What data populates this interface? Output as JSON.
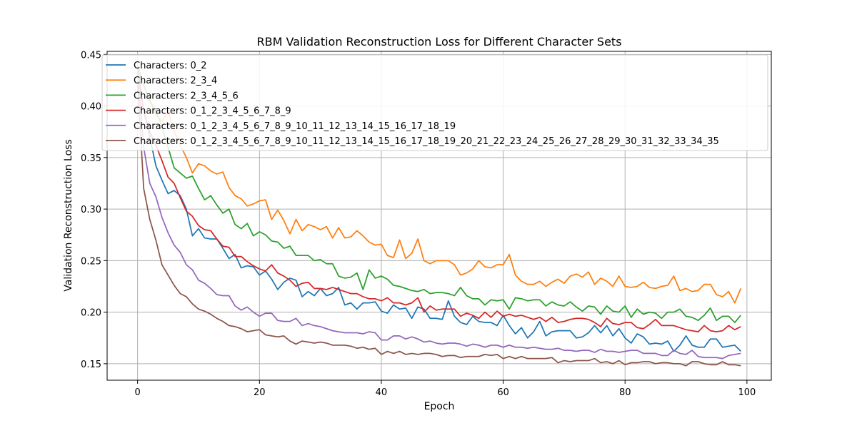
{
  "chart_data": {
    "type": "line",
    "title": "RBM Validation Reconstruction Loss for Different Character Sets",
    "xlabel": "Epoch",
    "ylabel": "Validation Reconstruction Loss",
    "xlim": [
      -5,
      104
    ],
    "ylim": [
      0.134,
      0.453
    ],
    "xticks": [
      0,
      20,
      40,
      60,
      80,
      100
    ],
    "yticks": [
      0.15,
      0.2,
      0.25,
      0.3,
      0.35,
      0.4,
      0.45
    ],
    "ytick_labels": [
      "0.15",
      "0.20",
      "0.25",
      "0.30",
      "0.35",
      "0.40",
      "0.45"
    ],
    "grid": true,
    "legend_position": "top-left",
    "series": [
      {
        "name": "Characters: 0_2",
        "color": "#1f77b4",
        "values": [
          0.436,
          0.395,
          0.37,
          0.342,
          0.328,
          0.315,
          0.318,
          0.313,
          0.3,
          0.274,
          0.281,
          0.272,
          0.271,
          0.271,
          0.262,
          0.252,
          0.256,
          0.243,
          0.245,
          0.244,
          0.236,
          0.24,
          0.232,
          0.222,
          0.229,
          0.233,
          0.231,
          0.215,
          0.22,
          0.216,
          0.223,
          0.216,
          0.218,
          0.224,
          0.207,
          0.209,
          0.203,
          0.209,
          0.209,
          0.21,
          0.201,
          0.199,
          0.207,
          0.203,
          0.204,
          0.194,
          0.205,
          0.203,
          0.194,
          0.194,
          0.193,
          0.211,
          0.196,
          0.19,
          0.188,
          0.196,
          0.191,
          0.19,
          0.19,
          0.187,
          0.197,
          0.187,
          0.179,
          0.185,
          0.175,
          0.181,
          0.191,
          0.177,
          0.181,
          0.182,
          0.182,
          0.182,
          0.175,
          0.176,
          0.18,
          0.187,
          0.18,
          0.187,
          0.177,
          0.184,
          0.175,
          0.17,
          0.179,
          0.176,
          0.169,
          0.17,
          0.169,
          0.172,
          0.162,
          0.168,
          0.177,
          0.168,
          0.166,
          0.166,
          0.174,
          0.174,
          0.166,
          0.167,
          0.168,
          0.162
        ]
      },
      {
        "name": "Characters: 2_3_4",
        "color": "#ff7f0e",
        "values": [
          0.44,
          0.42,
          0.405,
          0.392,
          0.385,
          0.395,
          0.376,
          0.362,
          0.35,
          0.335,
          0.344,
          0.342,
          0.337,
          0.334,
          0.336,
          0.321,
          0.313,
          0.31,
          0.303,
          0.305,
          0.308,
          0.309,
          0.29,
          0.299,
          0.289,
          0.276,
          0.29,
          0.279,
          0.285,
          0.283,
          0.28,
          0.283,
          0.272,
          0.282,
          0.272,
          0.273,
          0.279,
          0.274,
          0.268,
          0.265,
          0.266,
          0.255,
          0.253,
          0.27,
          0.252,
          0.257,
          0.271,
          0.25,
          0.247,
          0.25,
          0.25,
          0.25,
          0.246,
          0.236,
          0.238,
          0.242,
          0.25,
          0.244,
          0.243,
          0.246,
          0.246,
          0.256,
          0.236,
          0.23,
          0.227,
          0.227,
          0.23,
          0.225,
          0.229,
          0.232,
          0.228,
          0.235,
          0.237,
          0.234,
          0.239,
          0.227,
          0.233,
          0.23,
          0.225,
          0.235,
          0.225,
          0.224,
          0.225,
          0.229,
          0.224,
          0.223,
          0.225,
          0.226,
          0.235,
          0.221,
          0.223,
          0.22,
          0.221,
          0.227,
          0.227,
          0.217,
          0.215,
          0.22,
          0.209,
          0.223
        ]
      },
      {
        "name": "Characters: 2_3_4_5_6",
        "color": "#2ca02c",
        "values": [
          0.438,
          0.42,
          0.405,
          0.395,
          0.38,
          0.36,
          0.34,
          0.335,
          0.33,
          0.332,
          0.32,
          0.309,
          0.313,
          0.304,
          0.296,
          0.3,
          0.285,
          0.281,
          0.286,
          0.274,
          0.278,
          0.275,
          0.269,
          0.268,
          0.262,
          0.264,
          0.255,
          0.255,
          0.255,
          0.25,
          0.251,
          0.247,
          0.247,
          0.235,
          0.233,
          0.234,
          0.238,
          0.222,
          0.241,
          0.233,
          0.235,
          0.232,
          0.226,
          0.225,
          0.223,
          0.221,
          0.22,
          0.222,
          0.218,
          0.219,
          0.219,
          0.218,
          0.216,
          0.224,
          0.216,
          0.213,
          0.213,
          0.207,
          0.212,
          0.211,
          0.212,
          0.203,
          0.214,
          0.213,
          0.211,
          0.212,
          0.212,
          0.206,
          0.21,
          0.207,
          0.206,
          0.21,
          0.205,
          0.201,
          0.206,
          0.205,
          0.198,
          0.206,
          0.201,
          0.2,
          0.206,
          0.195,
          0.203,
          0.198,
          0.2,
          0.199,
          0.194,
          0.2,
          0.2,
          0.203,
          0.196,
          0.195,
          0.192,
          0.197,
          0.204,
          0.192,
          0.196,
          0.196,
          0.19,
          0.197
        ]
      },
      {
        "name": "Characters: 0_1_2_3_4_5_6_7_8_9",
        "color": "#d62728",
        "values": [
          0.437,
          0.395,
          0.375,
          0.362,
          0.347,
          0.331,
          0.325,
          0.311,
          0.298,
          0.293,
          0.284,
          0.28,
          0.279,
          0.271,
          0.264,
          0.263,
          0.254,
          0.254,
          0.249,
          0.245,
          0.242,
          0.24,
          0.246,
          0.238,
          0.235,
          0.231,
          0.225,
          0.228,
          0.229,
          0.223,
          0.223,
          0.222,
          0.224,
          0.222,
          0.22,
          0.218,
          0.218,
          0.215,
          0.213,
          0.213,
          0.211,
          0.214,
          0.209,
          0.209,
          0.207,
          0.209,
          0.214,
          0.2,
          0.206,
          0.202,
          0.203,
          0.203,
          0.203,
          0.196,
          0.199,
          0.197,
          0.194,
          0.2,
          0.195,
          0.201,
          0.196,
          0.198,
          0.196,
          0.197,
          0.195,
          0.193,
          0.195,
          0.191,
          0.195,
          0.19,
          0.191,
          0.193,
          0.194,
          0.194,
          0.193,
          0.19,
          0.186,
          0.194,
          0.189,
          0.188,
          0.19,
          0.19,
          0.185,
          0.184,
          0.188,
          0.193,
          0.187,
          0.187,
          0.187,
          0.185,
          0.183,
          0.182,
          0.181,
          0.187,
          0.182,
          0.181,
          0.182,
          0.187,
          0.183,
          0.186
        ]
      },
      {
        "name": "Characters: 0_1_2_3_4_5_6_7_8_9_10_11_12_13_14_15_16_17_18_19",
        "color": "#9467bd",
        "values": [
          0.436,
          0.36,
          0.325,
          0.312,
          0.292,
          0.277,
          0.265,
          0.258,
          0.246,
          0.241,
          0.231,
          0.228,
          0.223,
          0.217,
          0.216,
          0.216,
          0.206,
          0.202,
          0.205,
          0.2,
          0.196,
          0.199,
          0.199,
          0.192,
          0.191,
          0.191,
          0.194,
          0.187,
          0.189,
          0.187,
          0.186,
          0.184,
          0.182,
          0.181,
          0.18,
          0.18,
          0.18,
          0.179,
          0.181,
          0.18,
          0.173,
          0.173,
          0.177,
          0.177,
          0.174,
          0.176,
          0.174,
          0.171,
          0.172,
          0.17,
          0.169,
          0.17,
          0.17,
          0.169,
          0.167,
          0.169,
          0.168,
          0.166,
          0.168,
          0.168,
          0.166,
          0.168,
          0.166,
          0.166,
          0.165,
          0.166,
          0.165,
          0.164,
          0.164,
          0.165,
          0.163,
          0.163,
          0.162,
          0.163,
          0.163,
          0.161,
          0.164,
          0.162,
          0.162,
          0.161,
          0.162,
          0.163,
          0.163,
          0.16,
          0.16,
          0.16,
          0.158,
          0.158,
          0.163,
          0.16,
          0.159,
          0.163,
          0.157,
          0.156,
          0.156,
          0.156,
          0.155,
          0.158,
          0.159,
          0.16
        ]
      },
      {
        "name": "Characters: 0_1_2_3_4_5_6_7_8_9_10_11_12_13_14_15_16_17_18_19_20_21_22_23_24_25_26_27_28_29_30_31_32_33_34_35",
        "color": "#8c564b",
        "values": [
          0.425,
          0.32,
          0.29,
          0.27,
          0.246,
          0.236,
          0.226,
          0.218,
          0.215,
          0.208,
          0.203,
          0.201,
          0.198,
          0.194,
          0.191,
          0.187,
          0.186,
          0.184,
          0.181,
          0.182,
          0.183,
          0.178,
          0.177,
          0.176,
          0.177,
          0.172,
          0.169,
          0.172,
          0.171,
          0.17,
          0.171,
          0.17,
          0.168,
          0.168,
          0.168,
          0.167,
          0.165,
          0.166,
          0.164,
          0.165,
          0.159,
          0.162,
          0.16,
          0.162,
          0.159,
          0.16,
          0.159,
          0.16,
          0.16,
          0.159,
          0.157,
          0.158,
          0.158,
          0.156,
          0.157,
          0.157,
          0.157,
          0.159,
          0.158,
          0.159,
          0.155,
          0.157,
          0.155,
          0.157,
          0.155,
          0.155,
          0.155,
          0.155,
          0.156,
          0.151,
          0.153,
          0.152,
          0.153,
          0.153,
          0.153,
          0.155,
          0.151,
          0.152,
          0.15,
          0.153,
          0.149,
          0.151,
          0.151,
          0.152,
          0.152,
          0.15,
          0.151,
          0.151,
          0.15,
          0.15,
          0.148,
          0.152,
          0.152,
          0.15,
          0.149,
          0.149,
          0.152,
          0.149,
          0.149,
          0.148
        ]
      }
    ]
  }
}
